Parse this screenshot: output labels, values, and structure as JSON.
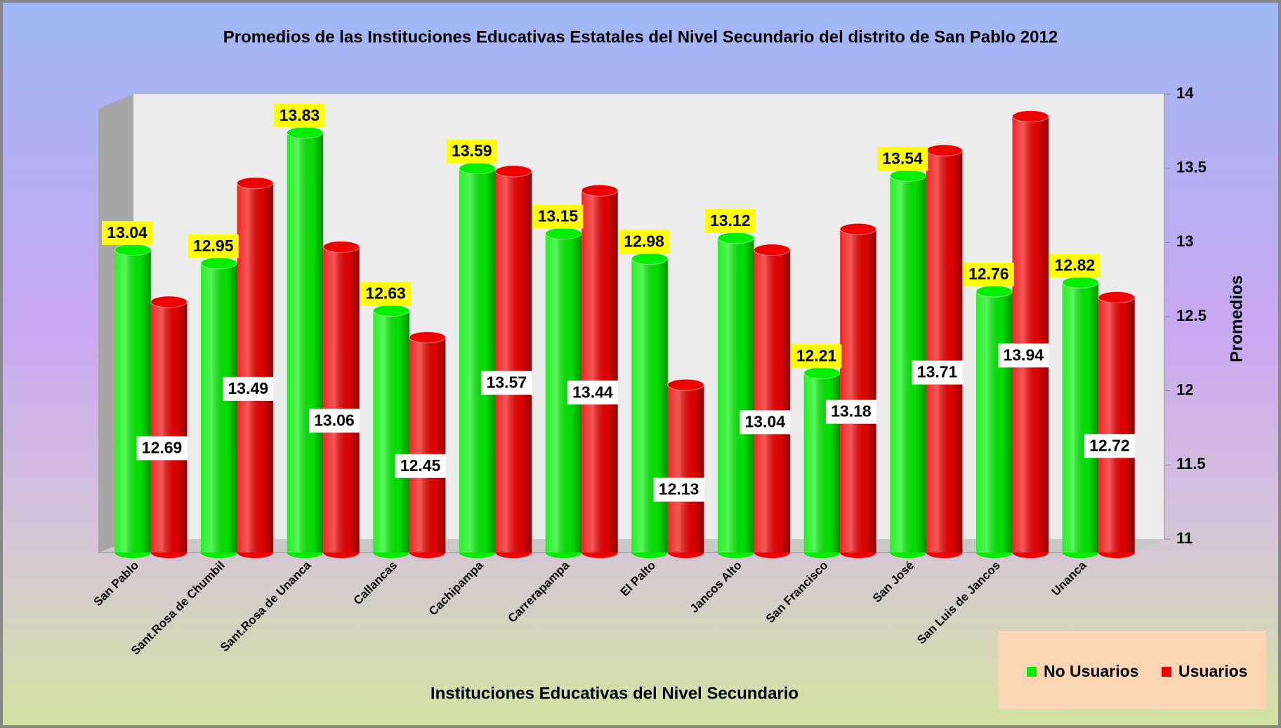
{
  "chart_data": {
    "type": "bar3d",
    "title": "Promedios de las Instituciones Educativas Estatales del Nivel Secundario del distrito  de San Pablo 2012",
    "x_label": "Instituciones Educativas del Nivel Secundario",
    "y_label": "Promedios",
    "categories": [
      "San Pablo",
      "Sant.Rosa de Chumbil",
      "Sant.Rosa de Unanca",
      "Callancas",
      "Cachipampa",
      "Carrerapampa",
      "El Palto",
      "Jancos Alto",
      "San Francisco",
      "San José",
      "San Luis de Jancos",
      "Unanca"
    ],
    "series": [
      {
        "name": "No Usuarios",
        "color": "#00ee00",
        "values": [
          13.04,
          12.95,
          13.83,
          12.63,
          13.59,
          13.15,
          12.98,
          13.12,
          12.21,
          13.54,
          12.76,
          12.82
        ]
      },
      {
        "name": "Usuarios",
        "color": "#ee0000",
        "values": [
          12.69,
          13.49,
          13.06,
          12.45,
          13.57,
          13.44,
          12.13,
          13.04,
          13.18,
          13.71,
          13.94,
          12.72
        ]
      }
    ],
    "ylim": [
      11,
      14
    ],
    "yticks": [
      11,
      11.5,
      12,
      12.5,
      13,
      13.5,
      14
    ],
    "grid": false,
    "legend": "bottom-right"
  }
}
